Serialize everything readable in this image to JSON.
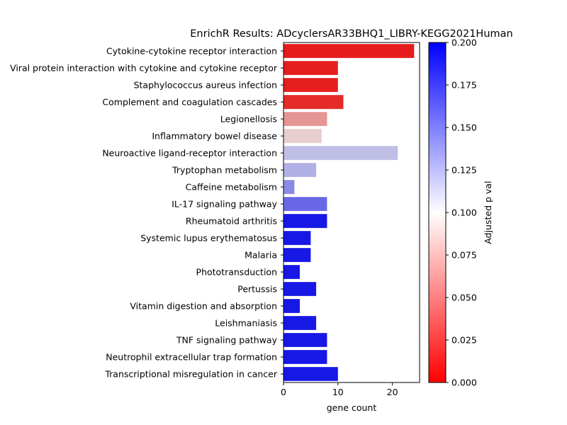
{
  "chart_data": {
    "type": "bar",
    "orientation": "horizontal",
    "title": "EnrichR Results: ADcyclersAR33BHQ1_LIBRY-KEGG2021Human",
    "xlabel": "gene count",
    "ylabel": "",
    "xlim": [
      0,
      25
    ],
    "x_ticks": [
      "0",
      "10",
      "20"
    ],
    "grid": false,
    "categories": [
      "Cytokine-cytokine receptor interaction",
      "Viral protein interaction with cytokine and cytokine receptor",
      "Staphylococcus aureus infection",
      "Complement and coagulation cascades",
      "Legionellosis",
      "Inflammatory bowel disease",
      "Neuroactive ligand-receptor interaction",
      "Tryptophan metabolism",
      "Caffeine metabolism",
      "IL-17 signaling pathway",
      "Rheumatoid arthritis",
      "Systemic lupus erythematosus",
      "Malaria",
      "Phototransduction",
      "Pertussis",
      "Vitamin digestion and absorption",
      "Leishmaniasis",
      "TNF signaling pathway",
      "Neutrophil extracellular trap formation",
      "Transcriptional misregulation in cancer"
    ],
    "values": [
      24,
      10,
      10,
      11,
      8,
      7,
      21,
      6,
      2,
      8,
      8,
      5,
      5,
      3,
      6,
      3,
      6,
      8,
      8,
      10
    ],
    "adjusted_p": [
      0.012,
      0.013,
      0.013,
      0.018,
      0.065,
      0.09,
      0.117,
      0.123,
      0.14,
      0.155,
      0.19,
      0.19,
      0.19,
      0.19,
      0.19,
      0.19,
      0.19,
      0.19,
      0.19,
      0.19
    ],
    "colorbar": {
      "label": "Adjusted p val",
      "range": [
        0,
        0.2
      ],
      "colormap": "bwr_r",
      "low_color": "#ff0000",
      "mid_color": "#ffffff",
      "high_color": "#0000ff",
      "ticks": [
        "0.000",
        "0.025",
        "0.050",
        "0.075",
        "0.100",
        "0.125",
        "0.150",
        "0.175",
        "0.200"
      ]
    }
  }
}
